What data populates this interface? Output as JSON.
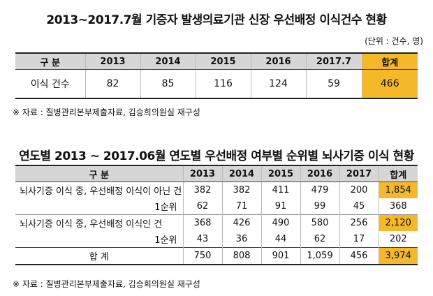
{
  "title1": "2013~2017.7월 기증자 발생의료기관 신장 우선배정 이식건수 현황",
  "unit1": "(단위 : 건수, 명)",
  "table1": {
    "header": [
      "구 분",
      "2013",
      "2014",
      "2015",
      "2016",
      "2017.7",
      "합계"
    ],
    "row": [
      "이식 건수",
      "82",
      "85",
      "116",
      "124",
      "59",
      "466"
    ]
  },
  "source1": "※ 자료 : 질병관리본부제출자료, 김승희의원실 재구성",
  "title2": "연도별 2013 ~ 2017.06월 연도별 우선배정 여부별 순위별 뇌사기증 이식 현황",
  "table2": {
    "header": [
      "구 분",
      "2013",
      "2014",
      "2015",
      "2016",
      "2017",
      "합계"
    ],
    "rows": [
      [
        "뇌사기증 이식 중, 우선배정 이식이 아닌 건",
        "382",
        "382",
        "411",
        "479",
        "200",
        "1,854"
      ],
      [
        "1순위",
        "62",
        "71",
        "91",
        "99",
        "45",
        "368"
      ],
      [
        "뇌사기증 이식 중, 우선배정 이식인 건",
        "368",
        "426",
        "490",
        "580",
        "256",
        "2,120"
      ],
      [
        "1순위",
        "43",
        "36",
        "44",
        "62",
        "17",
        "202"
      ],
      [
        "합 계",
        "750",
        "808",
        "901",
        "1,059",
        "456",
        "3,974"
      ]
    ]
  },
  "source2": "※ 자료 : 질병관리본부제출자료, 김승희의원실 재구성",
  "colors": {
    "highlight": "#f4b829",
    "header_bg": "#d6d6d6"
  }
}
